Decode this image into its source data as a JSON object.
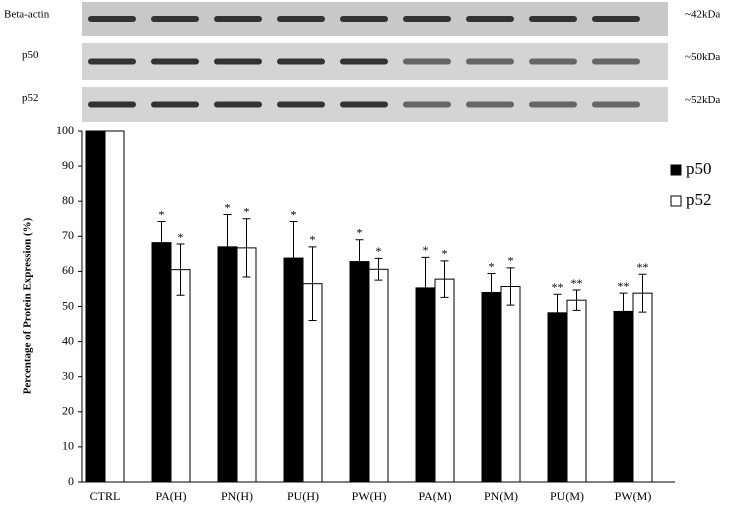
{
  "blots": [
    {
      "label": "Beta-actin",
      "size": "~42kDa"
    },
    {
      "label": "p50",
      "size": "~50kDa"
    },
    {
      "label": "p52",
      "size": "~52kDa"
    }
  ],
  "chart_data": {
    "type": "bar",
    "y_label": "Percentage of Protein Expression (%)",
    "categories": [
      "CTRL",
      "PA(H)",
      "PN(H)",
      "PU(H)",
      "PW(H)",
      "PA(M)",
      "PN(M)",
      "PU(M)",
      "PW(M)"
    ],
    "series": [
      {
        "name": "p50",
        "color": "#000000",
        "values": [
          100,
          68.2,
          67,
          63.8,
          62.8,
          55.3,
          54,
          48.2,
          48.6
        ],
        "errors": [
          null,
          6,
          9.2,
          10.4,
          6.2,
          8.7,
          5.4,
          5.3,
          5.2
        ],
        "annotations": [
          null,
          "*",
          "*",
          "*",
          "*",
          "*",
          "*",
          "**",
          "**"
        ]
      },
      {
        "name": "p52",
        "color": "#ffffff",
        "values": [
          100,
          60.5,
          66.7,
          56.5,
          60.6,
          57.8,
          55.7,
          51.8,
          53.8
        ],
        "errors": [
          null,
          7.3,
          8.3,
          10.5,
          3.1,
          5.2,
          5.3,
          2.9,
          5.4
        ],
        "annotations": [
          null,
          "*",
          "*",
          "*",
          "*",
          "*",
          "*",
          "**",
          "**"
        ]
      }
    ],
    "ylim": [
      0,
      100
    ],
    "yticks": [
      0,
      10,
      20,
      30,
      40,
      50,
      60,
      70,
      80,
      90,
      100
    ],
    "grid": false,
    "legend": "right"
  }
}
